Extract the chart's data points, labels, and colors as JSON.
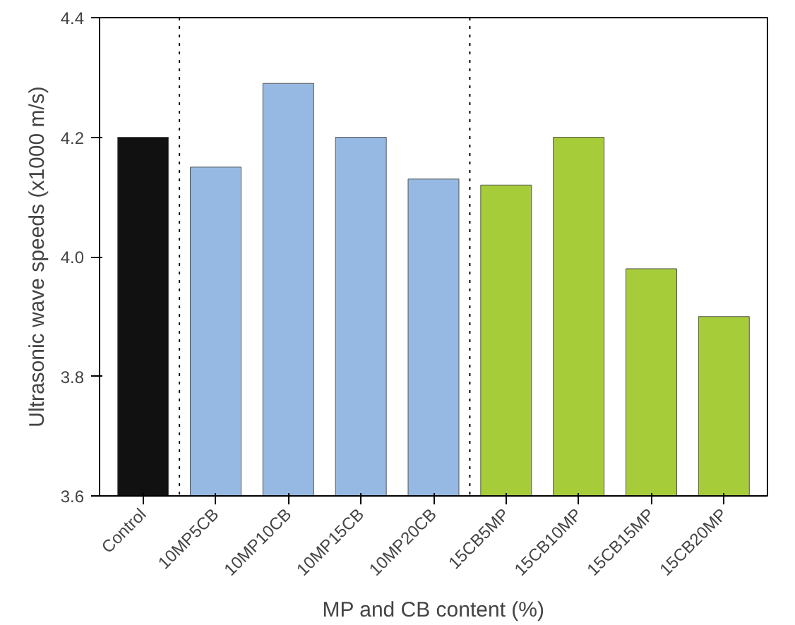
{
  "chart_data": {
    "type": "bar",
    "xlabel": "MP and CB content (%)",
    "ylabel": "Ultrasonic wave speeds (x1000 m/s)",
    "categories": [
      "Control",
      "10MP5CB",
      "10MP10CB",
      "10MP15CB",
      "10MP20CB",
      "15CB5MP",
      "15CB10MP",
      "15CB15MP",
      "15CB20MP"
    ],
    "values": [
      4.2,
      4.15,
      4.29,
      4.2,
      4.13,
      4.12,
      4.2,
      3.98,
      3.9
    ],
    "colors": [
      "#111111",
      "#96b9e3",
      "#96b9e3",
      "#96b9e3",
      "#96b9e3",
      "#a6cc3a",
      "#a6cc3a",
      "#a6cc3a",
      "#a6cc3a"
    ],
    "ylim": [
      3.6,
      4.4
    ],
    "yticks": [
      {
        "value": 3.6,
        "label": "3.6"
      },
      {
        "value": 3.8,
        "label": "3.8"
      },
      {
        "value": 4.0,
        "label": "4.0"
      },
      {
        "value": 4.2,
        "label": "4.2"
      },
      {
        "value": 4.4,
        "label": "4.4"
      }
    ],
    "grid": false
  }
}
